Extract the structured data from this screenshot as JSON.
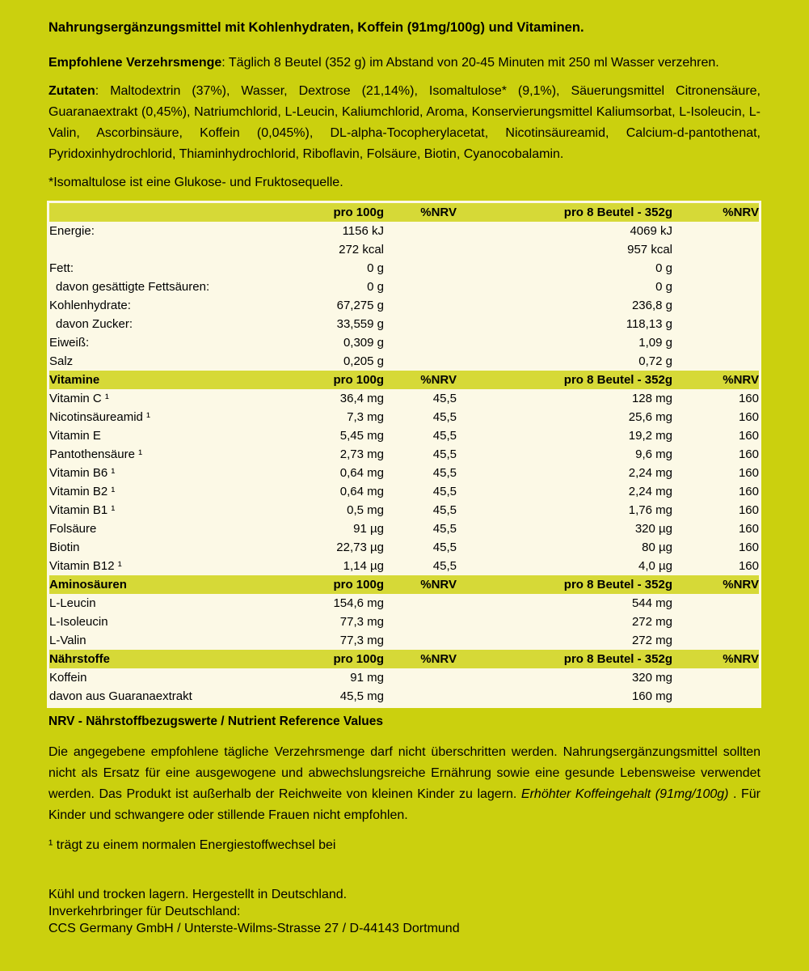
{
  "colors": {
    "page_bg": "#cbd00e",
    "section_header_bg": "#d6d937",
    "table_bg": "#fcf9e6",
    "text": "#000000"
  },
  "intro": {
    "title": "Nahrungsergänzungsmittel mit Kohlenhydraten, Koffein (91mg/100g) und Vitaminen.",
    "dosage_label": "Empfohlene Verzehrsmenge",
    "dosage_text": ": Täglich 8 Beutel (352 g) im Abstand von 20-45 Minuten mit 250 ml Wasser verzehren.",
    "ingredients_label": "Zutaten",
    "ingredients_text": ": Maltodextrin (37%), Wasser, Dextrose (21,14%), Isomaltulose* (9,1%), Säuerungsmittel Citronensäure, Guaranaextrakt (0,45%), Natriumchlorid, L-Leucin, Kaliumchlorid, Aroma, Konservierungsmittel Kaliumsorbat, L-Isoleucin, L-Valin, Ascorbinsäure, Koffein (0,045%), DL-alpha-Tocopherylacetat, Nicotinsäureamid, Calcium-d-pantothenat, Pyridoxinhydrochlorid, Thiaminhydrochlorid, Riboflavin, Folsäure, Biotin, Cyanocobalamin.",
    "isomaltulose_note": "*Isomaltulose ist eine Glukose- und Fruktosequelle."
  },
  "table": {
    "columns": [
      "",
      "pro 100g",
      "%NRV",
      "pro 8 Beutel - 352g",
      "%NRV"
    ],
    "sections": [
      {
        "title": "",
        "rows": [
          {
            "label": "Energie:",
            "indent": false,
            "v100": "1156 kJ",
            "nrv100": "",
            "v352": "4069 kJ",
            "nrv352": ""
          },
          {
            "label": "",
            "indent": false,
            "v100": "272 kcal",
            "nrv100": "",
            "v352": "957 kcal",
            "nrv352": ""
          },
          {
            "label": "Fett:",
            "indent": false,
            "v100": "0 g",
            "nrv100": "",
            "v352": "0 g",
            "nrv352": ""
          },
          {
            "label": "davon gesättigte Fettsäuren:",
            "indent": true,
            "v100": "0 g",
            "nrv100": "",
            "v352": "0 g",
            "nrv352": ""
          },
          {
            "label": "Kohlenhydrate:",
            "indent": false,
            "v100": "67,275 g",
            "nrv100": "",
            "v352": "236,8 g",
            "nrv352": ""
          },
          {
            "label": "davon Zucker:",
            "indent": true,
            "v100": "33,559 g",
            "nrv100": "",
            "v352": "118,13 g",
            "nrv352": ""
          },
          {
            "label": "Eiweiß:",
            "indent": false,
            "v100": "0,309 g",
            "nrv100": "",
            "v352": "1,09 g",
            "nrv352": ""
          },
          {
            "label": "Salz",
            "indent": false,
            "v100": "0,205 g",
            "nrv100": "",
            "v352": "0,72 g",
            "nrv352": ""
          }
        ]
      },
      {
        "title": "Vitamine",
        "rows": [
          {
            "label": "Vitamin C ¹",
            "indent": false,
            "v100": "36,4 mg",
            "nrv100": "45,5",
            "v352": "128 mg",
            "nrv352": "160"
          },
          {
            "label": "Nicotinsäureamid ¹",
            "indent": false,
            "v100": "7,3 mg",
            "nrv100": "45,5",
            "v352": "25,6 mg",
            "nrv352": "160"
          },
          {
            "label": "Vitamin E",
            "indent": false,
            "v100": "5,45 mg",
            "nrv100": "45,5",
            "v352": "19,2 mg",
            "nrv352": "160"
          },
          {
            "label": "Pantothensäure ¹",
            "indent": false,
            "v100": "2,73 mg",
            "nrv100": "45,5",
            "v352": "9,6 mg",
            "nrv352": "160"
          },
          {
            "label": "Vitamin B6 ¹",
            "indent": false,
            "v100": "0,64 mg",
            "nrv100": "45,5",
            "v352": "2,24 mg",
            "nrv352": "160"
          },
          {
            "label": "Vitamin B2 ¹",
            "indent": false,
            "v100": "0,64 mg",
            "nrv100": "45,5",
            "v352": "2,24 mg",
            "nrv352": "160"
          },
          {
            "label": "Vitamin B1 ¹",
            "indent": false,
            "v100": "0,5 mg",
            "nrv100": "45,5",
            "v352": "1,76 mg",
            "nrv352": "160"
          },
          {
            "label": "Folsäure",
            "indent": false,
            "v100": "91 µg",
            "nrv100": "45,5",
            "v352": "320 µg",
            "nrv352": "160"
          },
          {
            "label": "Biotin",
            "indent": false,
            "v100": "22,73 µg",
            "nrv100": "45,5",
            "v352": "80 µg",
            "nrv352": "160"
          },
          {
            "label": "Vitamin B12 ¹",
            "indent": false,
            "v100": "1,14 µg",
            "nrv100": "45,5",
            "v352": "4,0 µg",
            "nrv352": "160"
          }
        ]
      },
      {
        "title": "Aminosäuren",
        "rows": [
          {
            "label": "L-Leucin",
            "indent": false,
            "v100": "154,6 mg",
            "nrv100": "",
            "v352": "544 mg",
            "nrv352": ""
          },
          {
            "label": "L-Isoleucin",
            "indent": false,
            "v100": "77,3 mg",
            "nrv100": "",
            "v352": "272 mg",
            "nrv352": ""
          },
          {
            "label": "L-Valin",
            "indent": false,
            "v100": "77,3 mg",
            "nrv100": "",
            "v352": "272 mg",
            "nrv352": ""
          }
        ]
      },
      {
        "title": "Nährstoffe",
        "rows": [
          {
            "label": "Koffein",
            "indent": false,
            "v100": "91 mg",
            "nrv100": "",
            "v352": "320 mg",
            "nrv352": ""
          },
          {
            "label": "davon aus Guaranaextrakt",
            "indent": false,
            "v100": "45,5 mg",
            "nrv100": "",
            "v352": "160 mg",
            "nrv352": ""
          }
        ]
      }
    ]
  },
  "footer": {
    "nrv_note": "NRV - Nährstoffbezugswerte / Nutrient Reference Values",
    "warning_before": "Die angegebene empfohlene tägliche Verzehrsmenge darf nicht überschritten werden. Nahrungsergänzungsmittel sollten nicht als Ersatz für eine ausgewogene und abwechslungsreiche Ernährung sowie eine gesunde Lebensweise verwendet werden. Das Produkt ist außerhalb der Reichweite von kleinen Kinder zu lagern. ",
    "warning_italic": "Erhöhter Koffeingehalt (91mg/100g)",
    "warning_after": " . Für Kinder und schwangere oder stillende Frauen nicht empfohlen.",
    "energy_footnote": "¹ trägt zu einem normalen Energiestoffwechsel bei",
    "storage_line": "Kühl und trocken lagern. Hergestellt in Deutschland.",
    "distributor_label": "Inverkehrbringer für Deutschland:",
    "distributor_address": "CCS Germany GmbH / Unterste-Wilms-Strasse 27 / D-44143 Dortmund"
  }
}
